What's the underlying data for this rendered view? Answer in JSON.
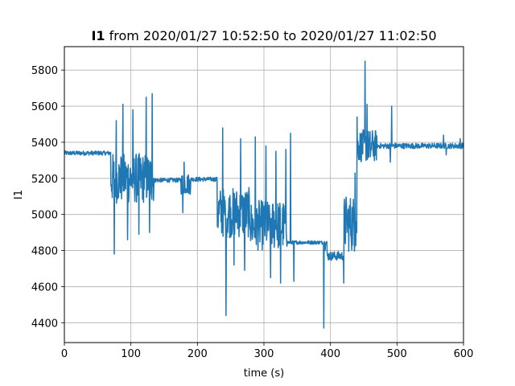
{
  "chart_data": {
    "type": "line",
    "title_bold": "I1",
    "title_rest": " from 2020/01/27 10:52:50 to 2020/01/27 11:02:50",
    "xlabel": "time (s)",
    "ylabel": "I1",
    "xlim": [
      0,
      600
    ],
    "ylim": [
      4290,
      5930
    ],
    "xticks": [
      0,
      100,
      200,
      300,
      400,
      500,
      600
    ],
    "yticks": [
      4400,
      4600,
      4800,
      5000,
      5200,
      5400,
      5600,
      5800
    ],
    "grid": true,
    "line_color": "#1f77b4",
    "series": [
      {
        "name": "",
        "segments": [
          {
            "t0": 0,
            "t1": 70,
            "base": 5340,
            "noise": 12
          },
          {
            "t0": 70,
            "t1": 135,
            "base": 5200,
            "noise": 140
          },
          {
            "t0": 135,
            "t1": 175,
            "base": 5190,
            "noise": 12
          },
          {
            "t0": 175,
            "t1": 190,
            "base": 5170,
            "noise": 60
          },
          {
            "t0": 190,
            "t1": 230,
            "base": 5195,
            "noise": 12
          },
          {
            "t0": 230,
            "t1": 280,
            "base": 5010,
            "noise": 140
          },
          {
            "t0": 280,
            "t1": 335,
            "base": 4940,
            "noise": 140
          },
          {
            "t0": 335,
            "t1": 395,
            "base": 4845,
            "noise": 10
          },
          {
            "t0": 395,
            "t1": 420,
            "base": 4770,
            "noise": 25
          },
          {
            "t0": 420,
            "t1": 440,
            "base": 4950,
            "noise": 160
          },
          {
            "t0": 440,
            "t1": 470,
            "base": 5380,
            "noise": 90
          },
          {
            "t0": 470,
            "t1": 600,
            "base": 5380,
            "noise": 15
          }
        ],
        "spikes": [
          {
            "x": 75,
            "y": 4780
          },
          {
            "x": 78,
            "y": 5520
          },
          {
            "x": 88,
            "y": 5610
          },
          {
            "x": 95,
            "y": 4860
          },
          {
            "x": 103,
            "y": 5580
          },
          {
            "x": 112,
            "y": 4890
          },
          {
            "x": 123,
            "y": 5650
          },
          {
            "x": 132,
            "y": 5670
          },
          {
            "x": 128,
            "y": 4900
          },
          {
            "x": 180,
            "y": 5290
          },
          {
            "x": 178,
            "y": 5010
          },
          {
            "x": 238,
            "y": 5480
          },
          {
            "x": 243,
            "y": 4440
          },
          {
            "x": 255,
            "y": 4720
          },
          {
            "x": 265,
            "y": 5420
          },
          {
            "x": 271,
            "y": 4690
          },
          {
            "x": 287,
            "y": 5430
          },
          {
            "x": 303,
            "y": 5380
          },
          {
            "x": 310,
            "y": 4650
          },
          {
            "x": 318,
            "y": 5350
          },
          {
            "x": 325,
            "y": 4620
          },
          {
            "x": 333,
            "y": 5360
          },
          {
            "x": 340,
            "y": 5450
          },
          {
            "x": 345,
            "y": 4630
          },
          {
            "x": 390,
            "y": 4370
          },
          {
            "x": 392,
            "y": 4800
          },
          {
            "x": 420,
            "y": 4620
          },
          {
            "x": 425,
            "y": 4900
          },
          {
            "x": 437,
            "y": 5230
          },
          {
            "x": 440,
            "y": 5540
          },
          {
            "x": 448,
            "y": 5400
          },
          {
            "x": 452,
            "y": 5850
          },
          {
            "x": 455,
            "y": 5610
          },
          {
            "x": 460,
            "y": 5320
          },
          {
            "x": 492,
            "y": 5600
          },
          {
            "x": 490,
            "y": 5290
          },
          {
            "x": 570,
            "y": 5440
          },
          {
            "x": 574,
            "y": 5330
          },
          {
            "x": 595,
            "y": 5420
          }
        ]
      }
    ]
  }
}
